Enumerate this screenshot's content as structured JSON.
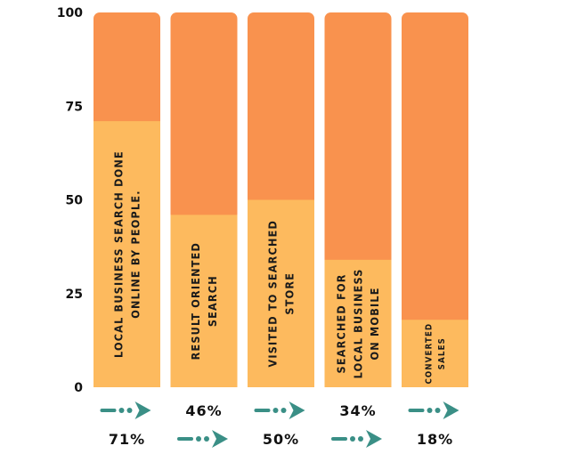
{
  "colors": {
    "background": "#f9924e",
    "value": "#fdba5e",
    "arrow": "#3a8f86",
    "text": "#1a1a1a"
  },
  "icon": "dotted-arrow-icon",
  "chart_data": {
    "type": "bar",
    "stacked_to": 100,
    "ylim": [
      0,
      100
    ],
    "yticks": [
      0,
      25,
      50,
      75,
      100
    ],
    "categories": [
      [
        "LOCAL BUSINESS SEARCH DONE",
        "ONLINE BY PEOPLE."
      ],
      [
        "RESULT ORIENTED",
        "SEARCH"
      ],
      [
        "VISITED TO SEARCHED",
        "STORE"
      ],
      [
        "SEARCHED FOR",
        "LOCAL BUSINESS",
        "ON MOBILE"
      ],
      [
        "CONVERTED",
        "SALES"
      ]
    ],
    "values": [
      71,
      46,
      50,
      34,
      18
    ],
    "value_labels": [
      "71%",
      "46%",
      "50%",
      "34%",
      "18%"
    ]
  }
}
